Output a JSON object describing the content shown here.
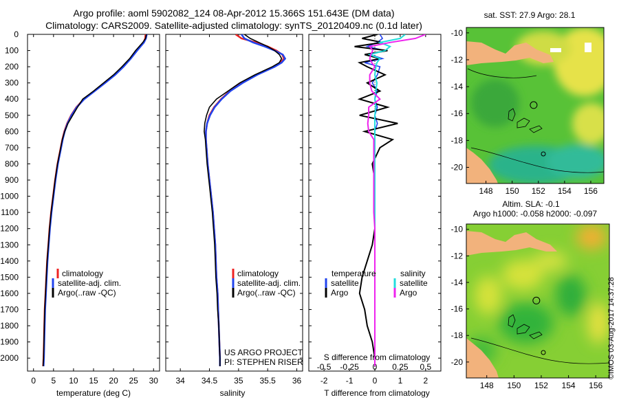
{
  "header": {
    "line1": "Argo profile: aoml 5902082_124 08-Apr-2012 15.366S 151.643E (DM data)",
    "line2": "Climatology: CARS2009. Satellite-adjusted climatology: synTS_20120409.nc (0.1d later)"
  },
  "depth_ticks": [
    0,
    100,
    200,
    300,
    400,
    500,
    600,
    700,
    800,
    900,
    1000,
    1100,
    1200,
    1300,
    1400,
    1500,
    1600,
    1700,
    1800,
    1900,
    2000
  ],
  "colors": {
    "climatology": "#ee2222",
    "satellite": "#2244ee",
    "argo": "#000000",
    "salinity_sat": "#22dddd",
    "salinity_argo": "#ee22ee",
    "land": "#f2b27c",
    "sea_green": "#33bb33"
  },
  "chart_data": [
    {
      "type": "line",
      "id": "temperature",
      "xlabel": "temperature (deg C)",
      "xlim": [
        -1.5,
        31.5
      ],
      "ylim": [
        2080,
        0
      ],
      "xticks": [
        0,
        5,
        10,
        15,
        20,
        25,
        30
      ],
      "legend": [
        "climatology",
        "satellite-adj. clim.",
        "Argo(..raw -QC)"
      ],
      "depth": [
        0,
        25,
        50,
        100,
        150,
        200,
        250,
        300,
        350,
        400,
        450,
        500,
        550,
        600,
        650,
        700,
        800,
        900,
        1000,
        1100,
        1200,
        1300,
        1400,
        1500,
        1600,
        1700,
        1800,
        1900,
        2000,
        2050
      ],
      "series": [
        {
          "name": "climatology",
          "values": [
            28.0,
            27.9,
            27.5,
            25.8,
            24.2,
            22.4,
            20.3,
            17.8,
            15.2,
            12.6,
            10.7,
            9.4,
            8.4,
            7.7,
            7.2,
            6.8,
            6.0,
            5.4,
            4.9,
            4.4,
            4.0,
            3.7,
            3.4,
            3.2,
            3.0,
            2.8,
            2.7,
            2.6,
            2.5,
            2.4
          ]
        },
        {
          "name": "satellite-adj. clim.",
          "values": [
            28.3,
            28.1,
            27.6,
            25.9,
            24.3,
            22.5,
            20.4,
            17.9,
            15.3,
            12.7,
            10.8,
            9.5,
            8.5,
            7.8,
            7.3,
            6.9,
            6.1,
            5.5,
            5.0,
            4.5,
            4.1,
            3.8,
            3.5,
            3.3,
            3.1,
            2.9,
            2.8,
            2.7,
            2.6,
            2.5
          ]
        },
        {
          "name": "Argo(..raw -QC)",
          "values": [
            28.2,
            28.0,
            27.3,
            25.5,
            24.0,
            22.1,
            20.0,
            17.5,
            15.0,
            12.3,
            11.0,
            9.8,
            8.6,
            7.8,
            7.2,
            6.8,
            6.0,
            5.4,
            4.9,
            4.4,
            4.0,
            3.7,
            3.4,
            3.2,
            3.0,
            2.8,
            2.7,
            2.6,
            2.5,
            2.4
          ]
        }
      ]
    },
    {
      "type": "line",
      "id": "salinity",
      "xlabel": "salinity",
      "xlim": [
        33.75,
        36.1
      ],
      "ylim": [
        2080,
        0
      ],
      "xticks": [
        34,
        34.5,
        35,
        35.5,
        36
      ],
      "legend": [
        "climatology",
        "satellite-adj. clim.",
        "Argo(..raw -QC)"
      ],
      "depth": [
        0,
        25,
        50,
        75,
        100,
        125,
        150,
        175,
        200,
        250,
        300,
        350,
        400,
        450,
        500,
        550,
        600,
        650,
        700,
        800,
        900,
        1000,
        1100,
        1200,
        1300,
        1400,
        1500,
        1600,
        1700,
        1800,
        1900,
        2000,
        2050
      ],
      "series": [
        {
          "name": "climatology",
          "values": [
            34.95,
            35.05,
            35.3,
            35.5,
            35.65,
            35.75,
            35.78,
            35.72,
            35.6,
            35.3,
            35.05,
            34.85,
            34.7,
            34.58,
            34.5,
            34.46,
            34.44,
            34.44,
            34.45,
            34.47,
            34.5,
            34.53,
            34.56,
            34.58,
            34.6,
            34.61,
            34.62,
            34.64,
            34.65,
            34.66,
            34.67,
            34.68,
            34.68
          ]
        },
        {
          "name": "satellite-adj. clim.",
          "values": [
            35.05,
            35.1,
            35.25,
            35.45,
            35.62,
            35.76,
            35.8,
            35.74,
            35.62,
            35.32,
            35.07,
            34.86,
            34.71,
            34.59,
            34.51,
            34.46,
            34.44,
            34.44,
            34.45,
            34.47,
            34.5,
            34.53,
            34.56,
            34.58,
            34.6,
            34.61,
            34.62,
            34.64,
            34.65,
            34.66,
            34.67,
            34.68,
            34.68
          ]
        },
        {
          "name": "Argo(..raw -QC)",
          "values": [
            35.1,
            35.2,
            35.35,
            35.5,
            35.62,
            35.7,
            35.74,
            35.7,
            35.58,
            35.28,
            35.02,
            34.82,
            34.62,
            34.5,
            34.45,
            34.42,
            34.41,
            34.43,
            34.44,
            34.46,
            34.49,
            34.52,
            34.55,
            34.57,
            34.59,
            34.6,
            34.61,
            34.63,
            34.64,
            34.66,
            34.67,
            34.68,
            34.68
          ]
        }
      ],
      "annotations": [
        "US ARGO PROJECT",
        "PI: STEPHEN RISER"
      ]
    },
    {
      "type": "line",
      "id": "difference",
      "xlabel": "T difference from climatology",
      "xlabel_top": "S difference from climatology",
      "xlim": [
        -2.6,
        2.6
      ],
      "ylim": [
        2080,
        0
      ],
      "xticks": [
        -2,
        -1,
        0,
        1,
        2
      ],
      "xticks_top": [
        "-0.5",
        "-0.25",
        "0",
        "0.25",
        "0.5"
      ],
      "legend_temperature": {
        "title": "temperature",
        "items": [
          "satellite",
          "Argo"
        ]
      },
      "legend_salinity": {
        "title": "salinity",
        "items": [
          "satellite",
          "Argo"
        ]
      },
      "depth": [
        0,
        25,
        50,
        75,
        100,
        125,
        150,
        175,
        200,
        250,
        300,
        350,
        400,
        450,
        500,
        550,
        600,
        650,
        700,
        800,
        900,
        1000,
        1100,
        1200,
        1300,
        1400,
        1500,
        1600,
        1700,
        1800,
        1900,
        2000,
        2050
      ],
      "series": [
        {
          "name": "T satellite",
          "values": [
            0.2,
            0.3,
            0.1,
            -0.3,
            0.4,
            -0.2,
            0.3,
            -0.4,
            0.2,
            0.1,
            -0.1,
            0.1,
            0.0,
            0.1,
            0.0,
            0.1,
            0.0,
            0.0,
            0.0,
            0.0,
            0.0,
            0.0,
            0.0,
            0.0,
            0.0,
            0.0,
            0.0,
            0.0,
            0.0,
            0.0,
            0.0,
            0.0,
            0.0
          ]
        },
        {
          "name": "T Argo",
          "values": [
            0.1,
            -0.5,
            0.3,
            -0.8,
            0.5,
            -0.4,
            0.2,
            -0.6,
            -0.3,
            0.4,
            -0.3,
            0.2,
            -0.6,
            0.5,
            -0.6,
            0.9,
            -0.4,
            0.7,
            0.2,
            -0.1,
            0.0,
            0.0,
            0.0,
            0.0,
            -0.1,
            -0.3,
            -0.5,
            -0.6,
            -0.4,
            -0.3,
            -0.1,
            0.0,
            0.0
          ]
        },
        {
          "name": "S satellite",
          "values": [
            0.3,
            0.25,
            0.05,
            0.15,
            0.1,
            -0.05,
            0.05,
            0.02,
            0.01,
            0.0,
            0.02,
            0.01,
            0.0,
            0.01,
            0.0,
            0.0,
            0.0,
            0.0,
            0.0,
            0.0,
            0.0,
            0.0,
            0.0,
            0.0,
            0.0,
            0.0,
            0.0,
            0.0,
            0.0,
            0.0,
            0.0,
            0.0,
            0.0
          ]
        },
        {
          "name": "S Argo",
          "values": [
            0.5,
            0.4,
            0.15,
            -0.05,
            -0.02,
            -0.04,
            -0.05,
            -0.03,
            0.0,
            -0.05,
            -0.05,
            -0.03,
            0.05,
            -0.06,
            -0.06,
            -0.07,
            -0.06,
            -0.01,
            -0.01,
            -0.01,
            -0.01,
            -0.01,
            -0.01,
            0.0,
            0.0,
            0.0,
            0.0,
            0.0,
            0.0,
            0.0,
            0.0,
            0.0,
            0.0
          ]
        }
      ]
    },
    {
      "type": "heatmap",
      "id": "sst_map",
      "title": "sat. SST: 27.9 Argo: 28.1",
      "xticks": [
        148,
        150,
        152,
        154,
        156
      ],
      "yticks": [
        -10,
        -12,
        -14,
        -16,
        -18,
        -20
      ],
      "xlim": [
        146.5,
        157.0
      ],
      "ylim": [
        -21.2,
        -9.6
      ],
      "argo_position": {
        "lon": 151.64,
        "lat": -15.37
      }
    },
    {
      "type": "heatmap",
      "id": "sla_map",
      "title": "Altim. SLA: -0.1",
      "subtitle": "Argo h1000: -0.058 h2000: -0.097",
      "xticks": [
        148,
        150,
        152,
        154,
        156
      ],
      "yticks": [
        -10,
        -12,
        -14,
        -16,
        -18,
        -20
      ],
      "xlim": [
        146.5,
        157.0
      ],
      "ylim": [
        -21.2,
        -9.6
      ],
      "argo_position": {
        "lon": 151.64,
        "lat": -15.37
      }
    }
  ],
  "footer": {
    "stamp": "©IMOS 03-Aug-2017 14:37:28"
  }
}
